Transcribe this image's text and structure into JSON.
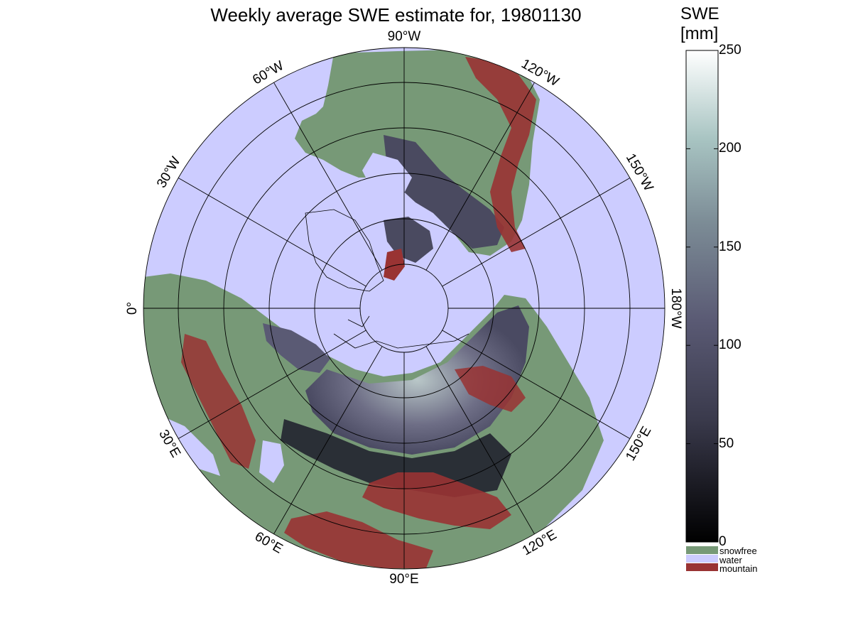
{
  "title": "Weekly average SWE estimate for, 19801130",
  "colors": {
    "water": "#ccccff",
    "snowfree": "#779977",
    "mountain": "#993333",
    "snow_low": "#000000",
    "snow_mid": "#5a5a74",
    "snow_high": "#ffffff",
    "grid": "#000000"
  },
  "map": {
    "projection": "north polar stereographic",
    "longitude_labels": [
      {
        "text": "90°W",
        "lon_deg": -90
      },
      {
        "text": "120°W",
        "lon_deg": -120
      },
      {
        "text": "150°W",
        "lon_deg": -150
      },
      {
        "text": "180°W",
        "lon_deg": 180
      },
      {
        "text": "150°E",
        "lon_deg": 150
      },
      {
        "text": "120°E",
        "lon_deg": 120
      },
      {
        "text": "90°E",
        "lon_deg": 90
      },
      {
        "text": "60°E",
        "lon_deg": 60
      },
      {
        "text": "30°E",
        "lon_deg": 30
      },
      {
        "text": "0°",
        "lon_deg": 0
      },
      {
        "text": "30°W",
        "lon_deg": -30
      },
      {
        "text": "60°W",
        "lon_deg": -60
      }
    ]
  },
  "colorbar": {
    "title_line1": "SWE",
    "title_line2": "[mm]",
    "min": 0,
    "max": 250,
    "ticks": [
      "0",
      "50",
      "100",
      "150",
      "200",
      "250"
    ],
    "categories": [
      {
        "label": "snowfree",
        "color": "#779977"
      },
      {
        "label": "water",
        "color": "#ccccff"
      },
      {
        "label": "mountain",
        "color": "#993333"
      }
    ]
  }
}
